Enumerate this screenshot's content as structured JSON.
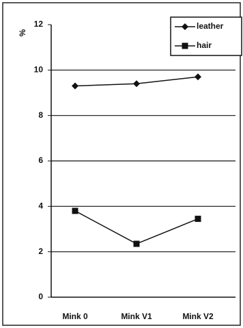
{
  "chart_data": {
    "type": "line",
    "y_label": "%",
    "categories": [
      "Mink 0",
      "Mink V1",
      "Mink V2"
    ],
    "series": [
      {
        "name": "leather",
        "color": "#111111",
        "marker": "diamond",
        "values": [
          9.3,
          9.4,
          9.7
        ]
      },
      {
        "name": "hair",
        "color": "#111111",
        "marker": "square",
        "values": [
          3.8,
          2.35,
          3.45
        ]
      }
    ],
    "ylim": [
      0,
      12
    ],
    "yticks": [
      0,
      2,
      4,
      6,
      8,
      10,
      12
    ],
    "grid": true,
    "legend": "top-right"
  }
}
